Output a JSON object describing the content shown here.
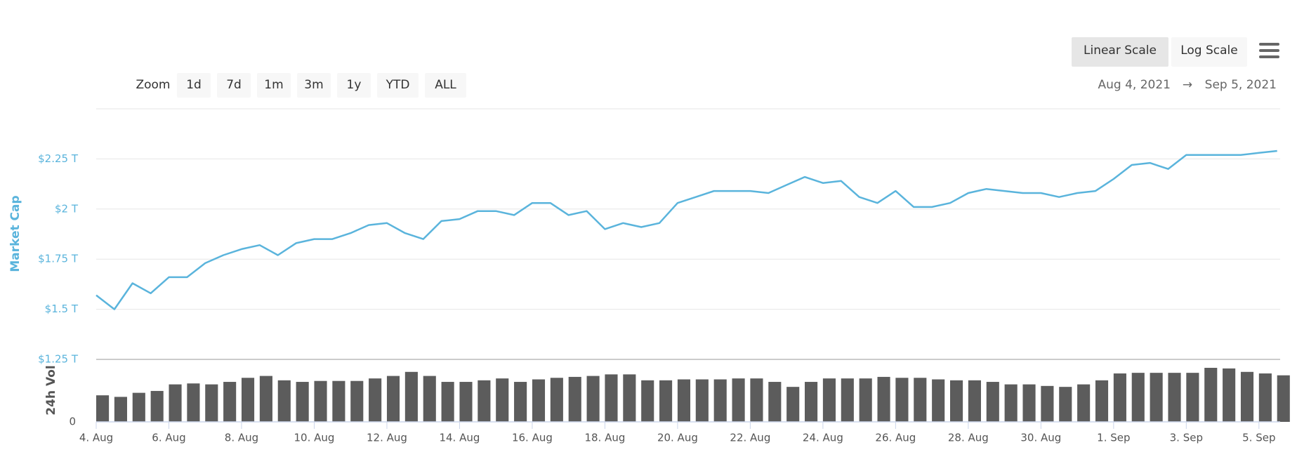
{
  "chart_data": {
    "type": "line",
    "zoom_label": "Zoom",
    "zoom_buttons": [
      "1d",
      "7d",
      "1m",
      "3m",
      "1y",
      "YTD",
      "ALL"
    ],
    "scale_buttons": [
      "Linear Scale",
      "Log Scale"
    ],
    "active_scale": "Linear Scale",
    "range_from": "Aug 4, 2021",
    "range_arrow": "→",
    "range_to": "Sep 5, 2021",
    "y_label": "Market Cap",
    "y2_label": "24h Vol",
    "grid": true,
    "xlim": [
      "2021-08-04T00:00",
      "2021-09-05T14:00"
    ],
    "xticks": [
      {
        "value": "2021-08-04",
        "label": "4. Aug"
      },
      {
        "value": "2021-08-06",
        "label": "6. Aug"
      },
      {
        "value": "2021-08-08",
        "label": "8. Aug"
      },
      {
        "value": "2021-08-10",
        "label": "10. Aug"
      },
      {
        "value": "2021-08-12",
        "label": "12. Aug"
      },
      {
        "value": "2021-08-14",
        "label": "14. Aug"
      },
      {
        "value": "2021-08-16",
        "label": "16. Aug"
      },
      {
        "value": "2021-08-18",
        "label": "18. Aug"
      },
      {
        "value": "2021-08-20",
        "label": "20. Aug"
      },
      {
        "value": "2021-08-22",
        "label": "22. Aug"
      },
      {
        "value": "2021-08-24",
        "label": "24. Aug"
      },
      {
        "value": "2021-08-26",
        "label": "26. Aug"
      },
      {
        "value": "2021-08-28",
        "label": "28. Aug"
      },
      {
        "value": "2021-08-30",
        "label": "30. Aug"
      },
      {
        "value": "2021-09-01",
        "label": "1. Sep"
      },
      {
        "value": "2021-09-03",
        "label": "3. Sep"
      },
      {
        "value": "2021-09-05",
        "label": "5. Sep"
      }
    ],
    "ylim": [
      1.25,
      2.5
    ],
    "yticks": [
      {
        "value": 1.25,
        "label": "$1.25 T"
      },
      {
        "value": 1.5,
        "label": "$1.5 T"
      },
      {
        "value": 1.75,
        "label": "$1.75 T"
      },
      {
        "value": 2,
        "label": "$2 T"
      },
      {
        "value": 2.25,
        "label": "$2.25 T"
      }
    ],
    "y2lim": [
      0,
      200
    ],
    "y2ticks": [
      0
    ],
    "x": [
      "2021-08-04T00:00",
      "2021-08-04T12:00",
      "2021-08-05T00:00",
      "2021-08-05T12:00",
      "2021-08-06T00:00",
      "2021-08-06T12:00",
      "2021-08-07T00:00",
      "2021-08-07T12:00",
      "2021-08-08T00:00",
      "2021-08-08T12:00",
      "2021-08-09T00:00",
      "2021-08-09T12:00",
      "2021-08-10T00:00",
      "2021-08-10T12:00",
      "2021-08-11T00:00",
      "2021-08-11T12:00",
      "2021-08-12T00:00",
      "2021-08-12T12:00",
      "2021-08-13T00:00",
      "2021-08-13T12:00",
      "2021-08-14T00:00",
      "2021-08-14T12:00",
      "2021-08-15T00:00",
      "2021-08-15T12:00",
      "2021-08-16T00:00",
      "2021-08-16T12:00",
      "2021-08-17T00:00",
      "2021-08-17T12:00",
      "2021-08-18T00:00",
      "2021-08-18T12:00",
      "2021-08-19T00:00",
      "2021-08-19T12:00",
      "2021-08-20T00:00",
      "2021-08-20T12:00",
      "2021-08-21T00:00",
      "2021-08-21T12:00",
      "2021-08-22T00:00",
      "2021-08-22T12:00",
      "2021-08-23T00:00",
      "2021-08-23T12:00",
      "2021-08-24T00:00",
      "2021-08-24T12:00",
      "2021-08-25T00:00",
      "2021-08-25T12:00",
      "2021-08-26T00:00",
      "2021-08-26T12:00",
      "2021-08-27T00:00",
      "2021-08-27T12:00",
      "2021-08-28T00:00",
      "2021-08-28T12:00",
      "2021-08-29T00:00",
      "2021-08-29T12:00",
      "2021-08-30T00:00",
      "2021-08-30T12:00",
      "2021-08-31T00:00",
      "2021-08-31T12:00",
      "2021-09-01T00:00",
      "2021-09-01T12:00",
      "2021-09-02T00:00",
      "2021-09-02T12:00",
      "2021-09-03T00:00",
      "2021-09-03T12:00",
      "2021-09-04T00:00",
      "2021-09-04T12:00",
      "2021-09-05T00:00",
      "2021-09-05T12:00"
    ],
    "series": [
      {
        "name": "Market Cap",
        "color": "#5ab4dc",
        "values": [
          1.57,
          1.5,
          1.63,
          1.58,
          1.66,
          1.66,
          1.73,
          1.77,
          1.8,
          1.82,
          1.77,
          1.83,
          1.85,
          1.85,
          1.88,
          1.92,
          1.93,
          1.88,
          1.85,
          1.94,
          1.95,
          1.99,
          1.99,
          1.97,
          2.03,
          2.03,
          1.97,
          1.99,
          1.9,
          1.93,
          1.91,
          1.93,
          2.03,
          2.06,
          2.09,
          2.09,
          2.09,
          2.08,
          2.12,
          2.16,
          2.13,
          2.14,
          2.06,
          2.03,
          2.09,
          2.01,
          2.01,
          2.03,
          2.08,
          2.1,
          2.09,
          2.08,
          2.08,
          2.06,
          2.08,
          2.09,
          2.15,
          2.22,
          2.23,
          2.2,
          2.27,
          2.27,
          2.27,
          2.27,
          2.28,
          2.29
        ]
      },
      {
        "name": "24h Vol",
        "color": "#5c5c5c",
        "axis": "y2",
        "type": "bar",
        "values": [
          85,
          80,
          93,
          99,
          120,
          123,
          120,
          128,
          141,
          147,
          133,
          128,
          131,
          131,
          131,
          139,
          147,
          160,
          147,
          128,
          128,
          133,
          139,
          128,
          136,
          141,
          144,
          147,
          152,
          152,
          133,
          133,
          136,
          136,
          136,
          139,
          139,
          128,
          112,
          128,
          139,
          139,
          139,
          144,
          141,
          141,
          136,
          133,
          133,
          128,
          120,
          120,
          115,
          112,
          120,
          133,
          155,
          157,
          157,
          157,
          157,
          173,
          171,
          160,
          155,
          149
        ]
      }
    ]
  }
}
